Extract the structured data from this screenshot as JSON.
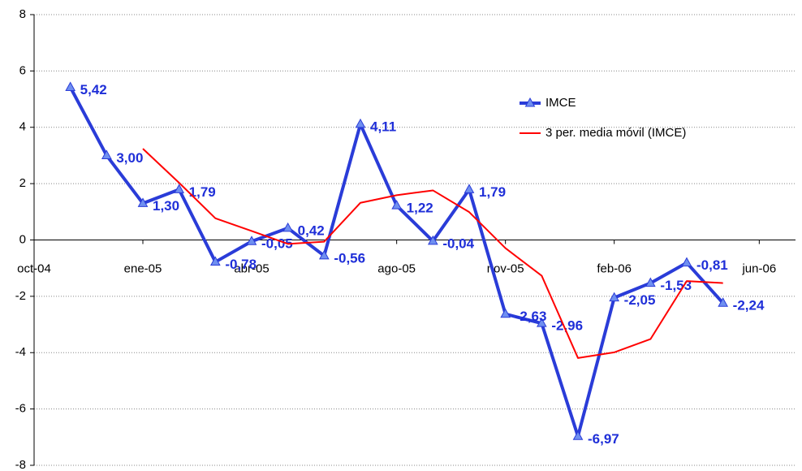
{
  "chart_data": {
    "type": "line",
    "x": [
      "2004-11",
      "2004-12",
      "2005-01",
      "2005-02",
      "2005-03",
      "2005-04",
      "2005-05",
      "2005-06",
      "2005-07",
      "2005-08",
      "2005-09",
      "2005-10",
      "2005-11",
      "2005-12",
      "2006-01",
      "2006-02",
      "2006-03",
      "2006-04",
      "2006-05"
    ],
    "series": [
      {
        "name": "IMCE",
        "color": "#2a3cd8",
        "marker_color": "#6f8ff0",
        "values": [
          5.42,
          3.0,
          1.3,
          1.79,
          -0.78,
          -0.05,
          0.42,
          -0.56,
          4.11,
          1.22,
          -0.04,
          1.79,
          -2.63,
          -2.96,
          -6.97,
          -2.05,
          -1.53,
          -0.81,
          -2.24
        ],
        "value_labels": [
          "5,42",
          "3,00",
          "1,30",
          "1,79",
          "-0,78",
          "-0,05",
          "0,42",
          "-0,56",
          "4,11",
          "1,22",
          "-0,04",
          "1,79",
          "-2,63",
          "-2,96",
          "-6,97",
          "-2,05",
          "-1,53",
          "-0,81",
          "-2,24"
        ]
      },
      {
        "name": "3 per. media móvil (IMCE)",
        "color": "#ff0000",
        "values": [
          null,
          null,
          3.24,
          2.03,
          0.77,
          0.32,
          -0.14,
          -0.06,
          1.32,
          1.59,
          1.76,
          0.99,
          -0.29,
          -1.27,
          -4.19,
          -3.99,
          -3.52,
          -1.46,
          -1.53
        ]
      }
    ],
    "xlim": [
      "2004-10",
      "2006-07"
    ],
    "xticks": [
      {
        "value": "2004-10",
        "label": "oct-04"
      },
      {
        "value": "2005-01",
        "label": "ene-05"
      },
      {
        "value": "2005-04",
        "label": "abr-05"
      },
      {
        "value": "2005-08",
        "label": "ago-05"
      },
      {
        "value": "2005-11",
        "label": "nov-05"
      },
      {
        "value": "2006-02",
        "label": "feb-06"
      },
      {
        "value": "2006-06",
        "label": "jun-06"
      }
    ],
    "ylim": [
      -8,
      8
    ],
    "yticks": [
      -8,
      -6,
      -4,
      -2,
      0,
      2,
      4,
      6,
      8
    ],
    "grid": true,
    "legend": "upper right"
  }
}
